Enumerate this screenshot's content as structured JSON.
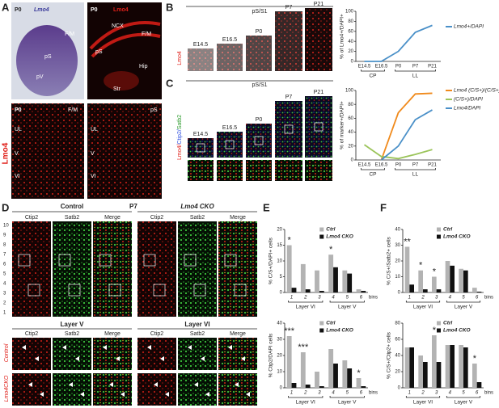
{
  "panel_A": {
    "letter": "A",
    "side_label": "Lmo4",
    "top_left": {
      "age": "P0",
      "gene": "Lmo4",
      "regions": [
        "F/M",
        "pS",
        "pV"
      ]
    },
    "top_right": {
      "age": "P0",
      "gene": "Lmo4",
      "regions": [
        "NCX",
        "F/M",
        "pS",
        "Hip",
        "Str"
      ]
    },
    "bottom_left": {
      "age": "P0",
      "region": "F/M",
      "layers": [
        "UL",
        "V",
        "VI"
      ]
    },
    "bottom_right": {
      "region": "pS",
      "layers": [
        "UL",
        "V",
        "VI"
      ]
    }
  },
  "panel_B": {
    "letter": "B",
    "area": "pS/S1",
    "ages": [
      "E14.5",
      "E16.5",
      "P0",
      "P7",
      "P21"
    ],
    "stain": "Lmo4"
  },
  "panel_C": {
    "letter": "C",
    "area": "pS/S1",
    "ages": [
      "E14.5",
      "E16.5",
      "P0",
      "P7",
      "P21"
    ],
    "stain_parts": [
      "Lmo4/",
      "Ctip2/",
      "Satb2"
    ]
  },
  "panel_D": {
    "letter": "D",
    "age": "P7",
    "groups": [
      "Control",
      "Lmo4 CKO"
    ],
    "columns": [
      "Ctip2",
      "Satb2",
      "Merge",
      "Ctip2",
      "Satb2",
      "Merge"
    ],
    "area": "S1",
    "bin_numbers": [
      "10",
      "9",
      "8",
      "7",
      "6",
      "5",
      "4",
      "3",
      "2",
      "1"
    ],
    "layers_left": [
      "UL",
      "V",
      "VI"
    ],
    "layers_right": [
      "V",
      "VI"
    ],
    "zoom_titles": [
      "Layer V",
      "Layer VI"
    ],
    "zoom_columns": [
      "Ctip2",
      "Satb2",
      "Merge",
      "Ctip2",
      "Satb2",
      "Merge"
    ],
    "zoom_rows": [
      "Control",
      "Lmo4CKO"
    ]
  },
  "panel_E": {
    "letter": "E"
  },
  "panel_F": {
    "letter": "F"
  },
  "chart_data": [
    {
      "type": "line",
      "y_label": "% of Lmo4+/DAPI+",
      "categories": [
        "E14.5",
        "E16.5",
        "P0",
        "P7",
        "P21"
      ],
      "groups": [
        "CP",
        "LL"
      ],
      "series": [
        {
          "name": "Lmo4+/DAPI",
          "color": "#4a90c8",
          "values": [
            0,
            0,
            20,
            58,
            72
          ]
        }
      ],
      "ylim": [
        0,
        100
      ],
      "yticks": [
        0,
        20,
        40,
        60,
        80,
        100
      ]
    },
    {
      "type": "line",
      "y_label": "% of marker+/DAPI+",
      "categories": [
        "E14.5",
        "E16.5",
        "P0",
        "P7",
        "P21"
      ],
      "groups": [
        "CP",
        "LL"
      ],
      "series": [
        {
          "name": "Lmo4 (C/S+)/(C/S+)",
          "color": "#f08a1c",
          "values": [
            null,
            0,
            68,
            95,
            96
          ]
        },
        {
          "name": "(C/S+)/DAPI",
          "color": "#9bc45a",
          "values": [
            22,
            5,
            2,
            8,
            15
          ]
        },
        {
          "name": "Lmo4/DAPI",
          "color": "#4a90c8",
          "values": [
            null,
            0,
            20,
            58,
            72
          ]
        }
      ],
      "ylim": [
        0,
        100
      ],
      "yticks": [
        0,
        20,
        40,
        60,
        80,
        100
      ]
    },
    {
      "type": "bar",
      "y_label": "% C/S+/DAPI+ cells",
      "categories": [
        "1",
        "2",
        "3",
        "4",
        "5",
        "6"
      ],
      "x_label": "bins",
      "groups": [
        "Layer VI",
        "Layer V"
      ],
      "series": [
        {
          "name": "Ctrl",
          "color": "#b3b3b3",
          "values": [
            15,
            9,
            7,
            12,
            7,
            1
          ]
        },
        {
          "name": "Lmo4 CKO",
          "color": "#111111",
          "values": [
            1.5,
            1,
            0.5,
            8,
            6,
            0.5
          ]
        }
      ],
      "ylim": [
        0,
        20
      ],
      "yticks": [
        0,
        5,
        10,
        15,
        20
      ],
      "annotations": [
        {
          "text": "*",
          "x": "1"
        },
        {
          "text": "*",
          "x": "4"
        }
      ]
    },
    {
      "type": "bar",
      "y_label": "% Ctip2/DAPI cells",
      "categories": [
        "1",
        "2",
        "3",
        "4",
        "5",
        "6"
      ],
      "x_label": "bins",
      "groups": [
        "Layer VI",
        "Layer V"
      ],
      "series": [
        {
          "name": "Ctrl",
          "color": "#b3b3b3",
          "values": [
            32,
            22,
            10,
            24,
            17,
            6
          ]
        },
        {
          "name": "Lmo4 CKO",
          "color": "#111111",
          "values": [
            3,
            2,
            1,
            15,
            12,
            1
          ]
        }
      ],
      "ylim": [
        0,
        40
      ],
      "yticks": [
        0,
        10,
        20,
        30,
        40
      ],
      "annotations": [
        {
          "text": "***",
          "x": "1"
        },
        {
          "text": "***",
          "x": "2"
        },
        {
          "text": "*",
          "x": "6"
        }
      ]
    },
    {
      "type": "bar",
      "y_label": "% C/S+/Satb2+ cells",
      "categories": [
        "1",
        "2",
        "3",
        "4",
        "5",
        "6"
      ],
      "x_label": "bins",
      "groups": [
        "Layer VI",
        "Layer V"
      ],
      "series": [
        {
          "name": "Ctrl",
          "color": "#b3b3b3",
          "values": [
            29,
            14,
            10,
            20,
            15,
            3
          ]
        },
        {
          "name": "Lmo4 CKO",
          "color": "#111111",
          "values": [
            5,
            2,
            2,
            17,
            14,
            0.5
          ]
        }
      ],
      "ylim": [
        0,
        40
      ],
      "yticks": [
        0,
        10,
        20,
        30,
        40
      ],
      "annotations": [
        {
          "text": "**",
          "x": "1"
        },
        {
          "text": "*",
          "x": "2"
        },
        {
          "text": "*",
          "x": "3"
        }
      ]
    },
    {
      "type": "bar",
      "y_label": "% C/S+/Ctip2+ cells",
      "categories": [
        "1",
        "2",
        "3",
        "4",
        "5",
        "6"
      ],
      "x_label": "bins",
      "groups": [
        "Layer VI",
        "Layer V"
      ],
      "series": [
        {
          "name": "Ctrl",
          "color": "#b3b3b3",
          "values": [
            50,
            40,
            65,
            53,
            53,
            30
          ]
        },
        {
          "name": "Lmo4 CKO",
          "color": "#111111",
          "values": [
            50,
            32,
            32,
            53,
            50,
            7
          ]
        }
      ],
      "ylim": [
        0,
        80
      ],
      "yticks": [
        0,
        20,
        40,
        60,
        80
      ],
      "annotations": [
        {
          "text": "*",
          "x": "3"
        },
        {
          "text": "*",
          "x": "6"
        }
      ]
    }
  ]
}
